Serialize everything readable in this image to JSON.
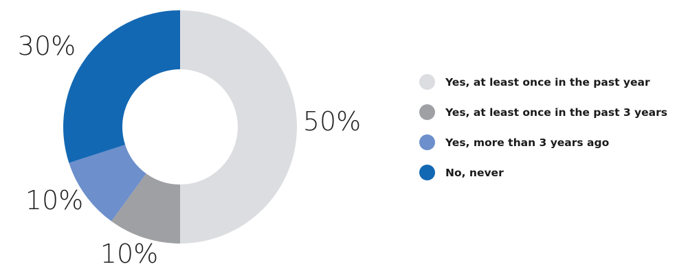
{
  "chart_data": {
    "type": "pie",
    "donut": true,
    "title": "",
    "categories": [
      "Yes, at least once in the past year",
      "Yes, at least once in the past 3 years",
      "Yes, more than 3 years ago",
      "No, never"
    ],
    "values": [
      50,
      10,
      10,
      30
    ],
    "value_labels": [
      "50%",
      "10%",
      "10%",
      "30%"
    ],
    "colors": [
      "#dcdde0",
      "#9fa0a3",
      "#6d8fcb",
      "#1368b3"
    ],
    "legend_placement": "right"
  }
}
